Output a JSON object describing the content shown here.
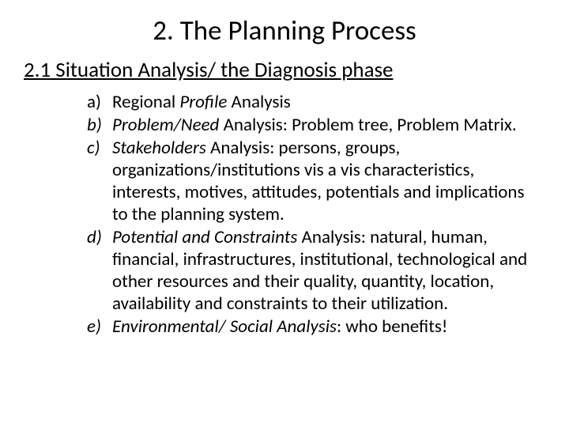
{
  "title": "2. The Planning Process",
  "subtitle": "2.1 Situation Analysis/ the Diagnosis phase",
  "items": {
    "a": {
      "marker": "a)"
    },
    "b": {
      "marker": "b)"
    },
    "c": {
      "marker": "c)"
    },
    "d": {
      "marker": "d)"
    },
    "e": {
      "marker": "e)"
    }
  },
  "text": {
    "a_pre": "Regional ",
    "a_em": "Profile",
    "a_post": " Analysis",
    "b_em": "Problem/Need",
    "b_post": " Analysis: Problem tree, Problem Matrix.",
    "c_em": "Stakeholders",
    "c_post": " Analysis: persons, groups, organizations/institutions vis a vis characteristics, interests, motives, attitudes, potentials and implications to the planning system.",
    "d_em": "Potential and Constraints",
    "d_post": " Analysis: natural, human, financial, infrastructures, institutional, technological and other resources and their quality, quantity, location, availability and constraints to their utilization.",
    "e_em": "Environmental/ Social Analysis",
    "e_post": ": who benefits!"
  },
  "style": {
    "background": "#ffffff",
    "text_color": "#000000",
    "title_fontsize": 35,
    "subtitle_fontsize": 27,
    "body_fontsize": 23,
    "font_family": "Calibri"
  }
}
